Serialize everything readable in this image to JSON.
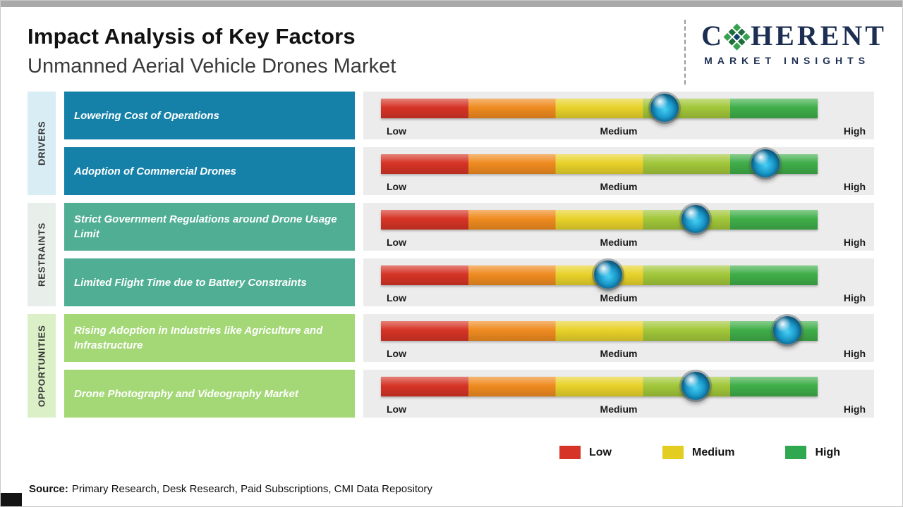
{
  "meta": {
    "title": "Impact Analysis of Key Factors",
    "subtitle": "Unmanned Aerial Vehicle Drones Market"
  },
  "logo": {
    "brand_first_letter": "C",
    "brand_rest": "HERENT",
    "tagline": "MARKET INSIGHTS"
  },
  "legend": [
    {
      "label": "Low",
      "color": "#d63426"
    },
    {
      "label": "Medium",
      "color": "#e3cd20"
    },
    {
      "label": "High",
      "color": "#2fa84f"
    }
  ],
  "source": {
    "label": "Source:",
    "text": "Primary Research, Desk Research, Paid Subscriptions, CMI Data Repository"
  },
  "chart_data": {
    "type": "impact-scale",
    "title": "Impact Analysis of Key Factors",
    "subtitle": "Unmanned Aerial Vehicle Drones Market",
    "scale_ticks": [
      "Low",
      "Medium",
      "High"
    ],
    "scale_range_pct": [
      0,
      100
    ],
    "bar_segment_colors": [
      "#d63426",
      "#ef8b20",
      "#e8d22a",
      "#a2c73a",
      "#3fae49"
    ],
    "marker_color": "#1a9acb",
    "groups": [
      {
        "name": "DRIVERS",
        "box_color": "#1581a9",
        "strip_color": "#d9edf4",
        "factors": [
          {
            "label": "Lowering Cost of Operations",
            "impact_pct": 65
          },
          {
            "label": "Adoption of Commercial Drones",
            "impact_pct": 88
          }
        ]
      },
      {
        "name": "RESTRAINTS",
        "box_color": "#4fae93",
        "strip_color": "#e8efeb",
        "factors": [
          {
            "label": "Strict Government Regulations around Drone Usage Limit",
            "impact_pct": 72
          },
          {
            "label": "Limited Flight Time due to Battery Constraints",
            "impact_pct": 52
          }
        ]
      },
      {
        "name": "OPPORTUNITIES",
        "box_color": "#a4d877",
        "strip_color": "#dcf0c8",
        "factors": [
          {
            "label": "Rising Adoption in Industries like Agriculture and Infrastructure",
            "impact_pct": 93
          },
          {
            "label": "Drone Photography and Videography Market",
            "impact_pct": 72
          }
        ]
      }
    ]
  }
}
